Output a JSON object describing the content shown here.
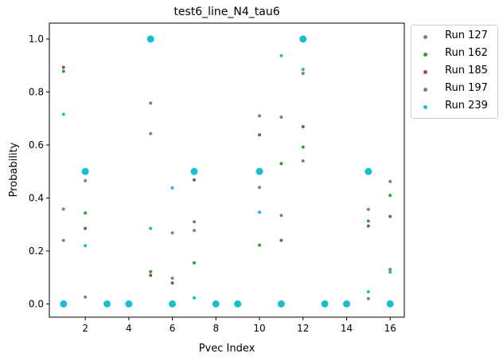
{
  "chart_data": {
    "type": "scatter",
    "title": "test6_line_N4_tau6",
    "xlabel": "Pvec Index",
    "ylabel": "Probability",
    "xlim": [
      0.35,
      16.65
    ],
    "ylim": [
      -0.05,
      1.06
    ],
    "xticks": [
      2,
      4,
      6,
      8,
      10,
      12,
      14,
      16
    ],
    "yticks": [
      0.0,
      0.2,
      0.4,
      0.6,
      0.8,
      1.0
    ],
    "ytick_labels": [
      "0.0",
      "0.2",
      "0.4",
      "0.6",
      "0.8",
      "1.0"
    ],
    "grid": false,
    "legend_placement": "outside top-right",
    "highlight_color": "#17becf",
    "highlight_points": [
      [
        1,
        0.0
      ],
      [
        2,
        0.5
      ],
      [
        3,
        0.0
      ],
      [
        4,
        0.0
      ],
      [
        5,
        1.0
      ],
      [
        6,
        0.0
      ],
      [
        7,
        0.5
      ],
      [
        8,
        0.0
      ],
      [
        9,
        0.0
      ],
      [
        10,
        0.5
      ],
      [
        11,
        0.0
      ],
      [
        12,
        1.0
      ],
      [
        13,
        0.0
      ],
      [
        14,
        0.0
      ],
      [
        15,
        0.5
      ],
      [
        16,
        0.0
      ]
    ],
    "series": [
      {
        "name": "Run 127",
        "color": "#7f7f7f",
        "points": [
          [
            1,
            0.24
          ],
          [
            2,
            0.465
          ],
          [
            5,
            0.758
          ],
          [
            6,
            0.097
          ],
          [
            7,
            0.31
          ],
          [
            10,
            0.71
          ],
          [
            11,
            0.705
          ],
          [
            12,
            0.87
          ],
          [
            15,
            0.357
          ],
          [
            16,
            0.462
          ]
        ]
      },
      {
        "name": "Run 162",
        "color": "#2ca02c",
        "points": [
          [
            1,
            0.878
          ],
          [
            2,
            0.343
          ],
          [
            5,
            0.122
          ],
          [
            7,
            0.155
          ],
          [
            10,
            0.222
          ],
          [
            11,
            0.53
          ],
          [
            12,
            0.592
          ],
          [
            15,
            0.313
          ],
          [
            16,
            0.41
          ]
        ]
      },
      {
        "name": "Run 185",
        "color": "#8c564b",
        "points": [
          [
            1,
            0.893
          ],
          [
            2,
            0.285
          ],
          [
            5,
            0.108
          ],
          [
            6,
            0.079
          ],
          [
            7,
            0.468
          ],
          [
            10,
            0.638
          ],
          [
            11,
            0.24
          ],
          [
            12,
            0.669
          ],
          [
            15,
            0.294
          ],
          [
            16,
            0.33
          ]
        ]
      },
      {
        "name": "Run 197",
        "color": "#7f7f7f",
        "points": [
          [
            1,
            0.358
          ],
          [
            2,
            0.026
          ],
          [
            5,
            0.643
          ],
          [
            6,
            0.268
          ],
          [
            7,
            0.277
          ],
          [
            10,
            0.44
          ],
          [
            11,
            0.334
          ],
          [
            12,
            0.54
          ],
          [
            15,
            0.02
          ],
          [
            16,
            0.13
          ]
        ]
      },
      {
        "name": "Run 239",
        "color": "#17becf",
        "points": [
          [
            1,
            0.716
          ],
          [
            2,
            0.22
          ],
          [
            5,
            0.285
          ],
          [
            6,
            0.438
          ],
          [
            7,
            0.023
          ],
          [
            10,
            0.346
          ],
          [
            11,
            0.937
          ],
          [
            12,
            0.885
          ],
          [
            15,
            0.046
          ],
          [
            16,
            0.12
          ]
        ]
      }
    ]
  }
}
